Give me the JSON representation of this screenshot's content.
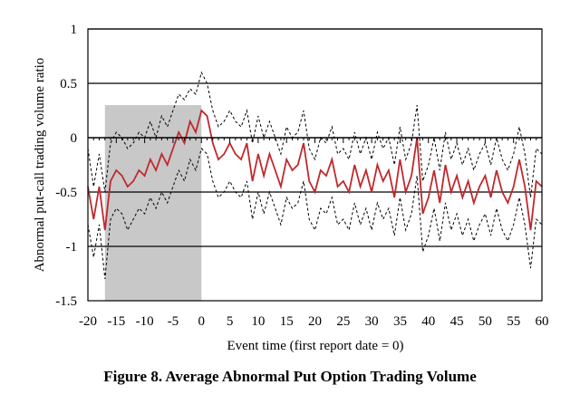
{
  "chart_data": {
    "type": "line",
    "title": "",
    "xlabel": "Event time (first report date = 0)",
    "ylabel": "Abnormal put-call trading volume ratio",
    "xlim": [
      -20,
      60
    ],
    "ylim": [
      -1.5,
      1
    ],
    "x_ticks": [
      -20,
      -15,
      -10,
      -5,
      0,
      5,
      10,
      15,
      20,
      25,
      30,
      35,
      40,
      45,
      50,
      55,
      60
    ],
    "y_ticks": [
      1,
      0.5,
      0,
      -0.5,
      -1,
      -1.5
    ],
    "y_tick_labels": [
      "1",
      "0.5",
      "0",
      "-0.5",
      "-1",
      "-1.5"
    ],
    "grid": "horizontal",
    "shaded_region": {
      "x_start": -17,
      "x_end": 0,
      "y_top": 0.3,
      "y_bottom": -1.5,
      "color": "#c8c8c8"
    },
    "colors": {
      "mean": "#c0282d",
      "bands": "#000000",
      "shade": "#c8c8c8"
    },
    "x": [
      -20,
      -19,
      -18,
      -17,
      -16,
      -15,
      -14,
      -13,
      -12,
      -11,
      -10,
      -9,
      -8,
      -7,
      -6,
      -5,
      -4,
      -3,
      -2,
      -1,
      0,
      1,
      2,
      3,
      4,
      5,
      6,
      7,
      8,
      9,
      10,
      11,
      12,
      13,
      14,
      15,
      16,
      17,
      18,
      19,
      20,
      21,
      22,
      23,
      24,
      25,
      26,
      27,
      28,
      29,
      30,
      31,
      32,
      33,
      34,
      35,
      36,
      37,
      38,
      39,
      40,
      41,
      42,
      43,
      44,
      45,
      46,
      47,
      48,
      49,
      50,
      51,
      52,
      53,
      54,
      55,
      56,
      57,
      58,
      59,
      60
    ],
    "series": [
      {
        "style": "solid",
        "values": [
          -0.45,
          -0.75,
          -0.45,
          -0.85,
          -0.4,
          -0.3,
          -0.35,
          -0.45,
          -0.4,
          -0.3,
          -0.35,
          -0.2,
          -0.3,
          -0.15,
          -0.25,
          -0.1,
          0.05,
          -0.05,
          0.15,
          0.05,
          0.25,
          0.2,
          -0.05,
          -0.2,
          -0.15,
          -0.05,
          -0.15,
          -0.2,
          -0.05,
          -0.4,
          -0.15,
          -0.35,
          -0.15,
          -0.3,
          -0.45,
          -0.2,
          -0.3,
          -0.25,
          -0.05,
          -0.4,
          -0.5,
          -0.3,
          -0.35,
          -0.2,
          -0.45,
          -0.4,
          -0.5,
          -0.25,
          -0.45,
          -0.3,
          -0.5,
          -0.25,
          -0.4,
          -0.3,
          -0.55,
          -0.2,
          -0.5,
          -0.35,
          0.0,
          -0.7,
          -0.55,
          -0.3,
          -0.6,
          -0.25,
          -0.5,
          -0.35,
          -0.55,
          -0.4,
          -0.6,
          -0.45,
          -0.35,
          -0.55,
          -0.3,
          -0.5,
          -0.6,
          -0.45,
          -0.2,
          -0.45,
          -0.85,
          -0.4,
          -0.45
        ]
      },
      {
        "style": "dashed",
        "values": [
          -0.1,
          -0.45,
          -0.15,
          -0.5,
          -0.05,
          0.05,
          0.0,
          -0.1,
          -0.05,
          0.05,
          0.0,
          0.15,
          0.0,
          0.2,
          0.1,
          0.25,
          0.4,
          0.35,
          0.45,
          0.4,
          0.6,
          0.5,
          0.25,
          0.1,
          0.15,
          0.25,
          0.15,
          0.1,
          0.25,
          -0.05,
          0.2,
          0.0,
          0.15,
          0.0,
          -0.15,
          0.1,
          0.0,
          0.05,
          0.25,
          -0.1,
          -0.2,
          0.0,
          -0.05,
          0.1,
          -0.15,
          -0.1,
          -0.2,
          0.05,
          -0.15,
          0.0,
          -0.2,
          0.05,
          -0.1,
          0.0,
          -0.25,
          0.1,
          -0.2,
          -0.05,
          0.3,
          -0.4,
          -0.25,
          0.0,
          -0.3,
          0.05,
          -0.2,
          -0.05,
          -0.25,
          -0.1,
          -0.3,
          -0.15,
          -0.05,
          -0.25,
          0.0,
          -0.2,
          -0.3,
          -0.15,
          0.1,
          -0.15,
          -0.55,
          -0.1,
          -0.15
        ]
      },
      {
        "style": "dashed",
        "values": [
          -0.8,
          -1.1,
          -0.8,
          -1.3,
          -0.75,
          -0.65,
          -0.7,
          -0.85,
          -0.75,
          -0.65,
          -0.7,
          -0.55,
          -0.65,
          -0.5,
          -0.6,
          -0.45,
          -0.3,
          -0.4,
          -0.2,
          -0.3,
          -0.1,
          -0.15,
          -0.4,
          -0.55,
          -0.5,
          -0.4,
          -0.5,
          -0.55,
          -0.4,
          -0.75,
          -0.5,
          -0.7,
          -0.5,
          -0.65,
          -0.8,
          -0.55,
          -0.65,
          -0.6,
          -0.4,
          -0.75,
          -0.85,
          -0.65,
          -0.7,
          -0.55,
          -0.8,
          -0.75,
          -0.85,
          -0.6,
          -0.8,
          -0.65,
          -0.85,
          -0.6,
          -0.75,
          -0.65,
          -0.9,
          -0.55,
          -0.85,
          -0.7,
          -0.35,
          -1.05,
          -0.9,
          -0.65,
          -0.95,
          -0.6,
          -0.85,
          -0.7,
          -0.9,
          -0.75,
          -0.95,
          -0.8,
          -0.7,
          -0.9,
          -0.65,
          -0.85,
          -0.95,
          -0.8,
          -0.55,
          -0.8,
          -1.2,
          -0.75,
          -0.8
        ]
      }
    ]
  },
  "caption": "Figure 8. Average Abnormal Put Option Trading Volume"
}
